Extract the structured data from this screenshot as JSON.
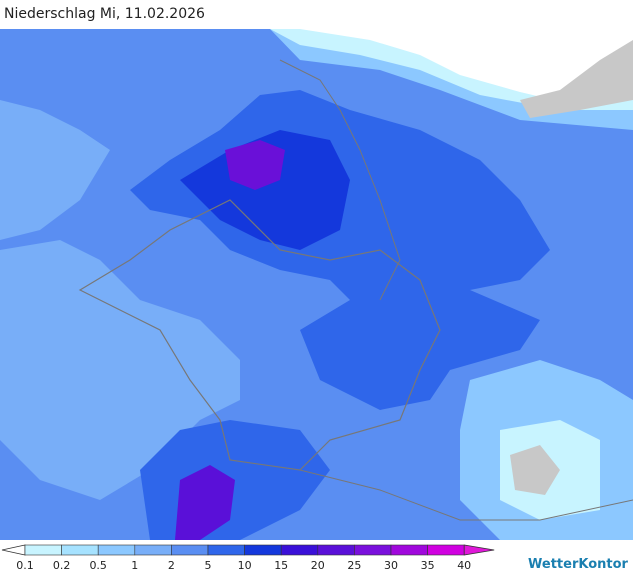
{
  "header": {
    "title": "Niederschlag Mi, 11.02.2026"
  },
  "legend": {
    "labels": [
      "0.1",
      "0.2",
      "0.5",
      "1",
      "2",
      "5",
      "10",
      "15",
      "20",
      "25",
      "30",
      "35",
      "40"
    ],
    "colors": [
      "#c8f4ff",
      "#a6e2ff",
      "#8cc8ff",
      "#78aef8",
      "#5a8ef2",
      "#2f66ea",
      "#1438dc",
      "#3a10d8",
      "#5a10d8",
      "#7a10dc",
      "#a008dc",
      "#d000e0"
    ],
    "under_color": "#ffffff",
    "over_color": "#e018d8"
  },
  "brand": {
    "name": "WetterKontor"
  }
}
